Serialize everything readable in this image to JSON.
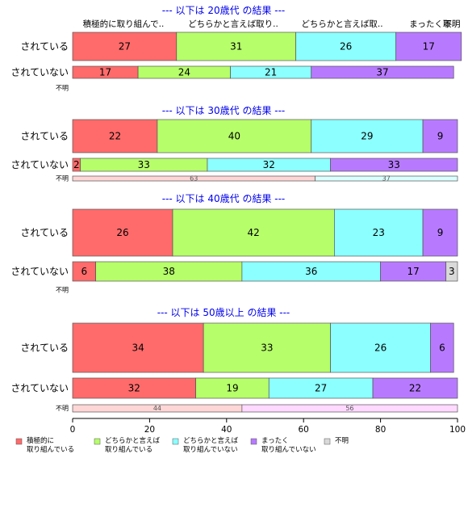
{
  "chart_data": {
    "type": "bar",
    "orientation": "horizontal",
    "stacked": true,
    "percent": true,
    "xlim": [
      0,
      100
    ],
    "x_ticks": [
      "0",
      "20",
      "40",
      "60",
      "80",
      "100"
    ],
    "column_headers": [
      "積極的に取り組んで..",
      "どちらかと言えば取り..",
      "どちらかと言えば取..",
      "まったく取.",
      "不明"
    ],
    "legend_position": "bottom",
    "legend": [
      {
        "label_lines": [
          "積極的に",
          "取り組んでいる"
        ],
        "color": "#ff6b6b"
      },
      {
        "label_lines": [
          "どちらかと言えば",
          "取り組んでいる"
        ],
        "color": "#b6ff6a"
      },
      {
        "label_lines": [
          "どちらかと言えば",
          "取り組んでいない"
        ],
        "color": "#8cffff"
      },
      {
        "label_lines": [
          "まったく",
          "取り組んでいない"
        ],
        "color": "#b77aff"
      },
      {
        "label_lines": [
          "不明"
        ],
        "color": "#d9d9d9"
      }
    ],
    "panels": [
      {
        "title": "--- 以下は 20歳代 の結果 ---",
        "rows": [
          {
            "label": "されている",
            "kind": "main",
            "values": [
              27,
              31,
              26,
              17,
              0
            ],
            "value_labels": [
              "27",
              "31",
              "26",
              "17",
              ""
            ]
          },
          {
            "label": "されていない",
            "kind": "mid",
            "values": [
              17,
              24,
              21,
              37,
              0
            ],
            "value_labels": [
              "17",
              "24",
              "21",
              "37",
              ""
            ]
          },
          {
            "label": "不明",
            "kind": "thin",
            "values": [],
            "value_labels": []
          }
        ]
      },
      {
        "title": "--- 以下は 30歳代 の結果 ---",
        "rows": [
          {
            "label": "されている",
            "kind": "main",
            "values": [
              22,
              40,
              29,
              9,
              0
            ],
            "value_labels": [
              "22",
              "40",
              "29",
              "9",
              ""
            ]
          },
          {
            "label": "されていない",
            "kind": "mid",
            "values": [
              2,
              33,
              32,
              33,
              0
            ],
            "value_labels": [
              "2",
              "33",
              "32",
              "33",
              ""
            ]
          },
          {
            "label": "不明",
            "kind": "thin",
            "values": [
              63,
              37
            ],
            "value_labels": [
              "63",
              "37"
            ],
            "thin_colors": [
              "#ffd6d6",
              "#d9ffff"
            ]
          }
        ]
      },
      {
        "title": "--- 以下は 40歳代 の結果 ---",
        "rows": [
          {
            "label": "されている",
            "kind": "main",
            "values": [
              26,
              42,
              23,
              9,
              0
            ],
            "value_labels": [
              "26",
              "42",
              "23",
              "9",
              ""
            ]
          },
          {
            "label": "されていない",
            "kind": "mid",
            "values": [
              6,
              38,
              36,
              17,
              3
            ],
            "value_labels": [
              "6",
              "38",
              "36",
              "17",
              "3"
            ]
          },
          {
            "label": "不明",
            "kind": "thin",
            "values": [],
            "value_labels": []
          }
        ]
      },
      {
        "title": "--- 以下は 50歳以上 の結果 ---",
        "rows": [
          {
            "label": "されている",
            "kind": "main",
            "values": [
              34,
              33,
              26,
              6,
              0
            ],
            "value_labels": [
              "34",
              "33",
              "26",
              "6",
              ""
            ]
          },
          {
            "label": "されていない",
            "kind": "mid",
            "values": [
              32,
              19,
              27,
              22,
              0
            ],
            "value_labels": [
              "32",
              "19",
              "27",
              "22",
              ""
            ]
          },
          {
            "label": "不明",
            "kind": "thin",
            "values": [
              44,
              56
            ],
            "value_labels": [
              "44",
              "56"
            ],
            "thin_colors": [
              "#ffd6d6",
              "#ffd9ff"
            ]
          }
        ]
      }
    ],
    "colors": {
      "title": "#0000ee",
      "axis": "#000000",
      "bar_border": "#555555"
    }
  }
}
